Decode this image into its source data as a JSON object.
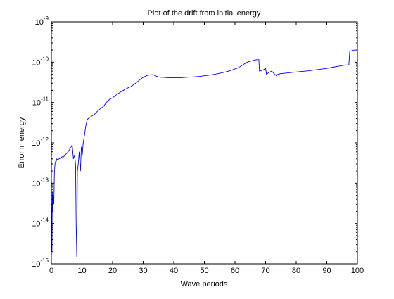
{
  "chart_data": {
    "type": "line",
    "title": "Plot of the drift from initial energy",
    "xlabel": "Wave periods",
    "ylabel": "Error in energy",
    "xlim": [
      0,
      100
    ],
    "ylim": [
      1e-15,
      1e-09
    ],
    "yscale": "log",
    "grid": false,
    "legend": "none",
    "x_ticks": [
      0,
      10,
      20,
      30,
      40,
      50,
      60,
      70,
      80,
      90,
      100
    ],
    "y_ticks": [
      1e-15,
      1e-14,
      1e-13,
      1e-12,
      1e-11,
      1e-10,
      1e-09
    ],
    "y_tick_labels": [
      {
        "base": "10",
        "exp": "-15"
      },
      {
        "base": "10",
        "exp": "-14"
      },
      {
        "base": "10",
        "exp": "-13"
      },
      {
        "base": "10",
        "exp": "-12"
      },
      {
        "base": "10",
        "exp": "-11"
      },
      {
        "base": "10",
        "exp": "-10"
      },
      {
        "base": "10",
        "exp": "-9"
      }
    ],
    "series": [
      {
        "color": "#0000ff",
        "x": [
          0.0,
          0.2,
          0.3,
          0.5,
          0.6,
          0.8,
          1.0,
          1.2,
          1.4,
          1.6,
          1.8,
          2.0,
          2.5,
          3.0,
          3.5,
          4.0,
          4.5,
          5.0,
          5.5,
          6.0,
          6.5,
          6.8,
          7.2,
          7.6,
          7.9,
          8.1,
          8.3,
          8.5,
          8.8,
          9.1,
          9.5,
          9.8,
          10.1,
          10.4,
          10.8,
          11.2,
          11.6,
          12.0,
          13.0,
          14.0,
          15.0,
          16.0,
          17.0,
          18.0,
          19.0,
          20.0,
          21.0,
          22.0,
          23.0,
          24.0,
          25.0,
          26.0,
          27.0,
          28.0,
          29.0,
          30.0,
          31.0,
          32.0,
          33.0,
          34.0,
          35.0,
          36.0,
          37.0,
          38.0,
          40.0,
          42.0,
          44.0,
          46.0,
          48.0,
          50.0,
          52.0,
          54.0,
          56.0,
          58.0,
          60.0,
          61.0,
          62.0,
          63.0,
          64.0,
          65.0,
          66.0,
          67.0,
          67.8,
          68.0,
          69.0,
          70.0,
          70.3,
          71.0,
          72.0,
          73.0,
          73.5,
          74.0,
          75.0,
          76.0,
          78.0,
          80.0,
          82.0,
          84.0,
          86.0,
          88.0,
          90.0,
          92.0,
          94.0,
          96.0,
          97.2,
          97.5,
          98.0,
          99.0,
          100.0
        ],
        "y": [
          5e-14,
          2e-15,
          6e-14,
          2e-14,
          5e-14,
          3e-14,
          2e-13,
          3e-13,
          3.5e-13,
          3.5e-13,
          4e-13,
          3.8e-13,
          4e-13,
          4.2e-13,
          4.5e-13,
          4.5e-13,
          5e-13,
          5.5e-13,
          6e-13,
          7e-13,
          8e-13,
          9e-13,
          4e-13,
          5e-13,
          3e-13,
          1e-14,
          1.5e-15,
          2e-13,
          3e-13,
          6e-13,
          2e-13,
          8e-13,
          5e-13,
          1e-12,
          1.5e-12,
          2.5e-12,
          3.5e-12,
          4e-12,
          4.5e-12,
          5e-12,
          6e-12,
          7e-12,
          8e-12,
          1e-11,
          1.2e-11,
          1.3e-11,
          1.5e-11,
          1.7e-11,
          1.9e-11,
          2.1e-11,
          2.3e-11,
          2.5e-11,
          2.8e-11,
          3.2e-11,
          3.7e-11,
          4.2e-11,
          4.6e-11,
          4.8e-11,
          4.9e-11,
          4.6e-11,
          4.3e-11,
          4.2e-11,
          4.2e-11,
          4.1e-11,
          4.1e-11,
          4.1e-11,
          4.2e-11,
          4.3e-11,
          4.4e-11,
          4.6e-11,
          4.8e-11,
          5.1e-11,
          5.5e-11,
          6e-11,
          6.8e-11,
          7.2e-11,
          8e-11,
          9e-11,
          1e-10,
          1.05e-10,
          1.1e-10,
          1.15e-10,
          1.15e-10,
          6e-11,
          6.3e-11,
          7e-11,
          5e-11,
          5.5e-11,
          6e-11,
          5e-11,
          4.6e-11,
          5e-11,
          5.2e-11,
          5.3e-11,
          5.5e-11,
          5.7e-11,
          5.9e-11,
          6.1e-11,
          6.4e-11,
          6.7e-11,
          7e-11,
          7.5e-11,
          8e-11,
          8.5e-11,
          8.5e-11,
          1.9e-10,
          1.9e-10,
          2e-10,
          2e-10
        ]
      }
    ]
  }
}
